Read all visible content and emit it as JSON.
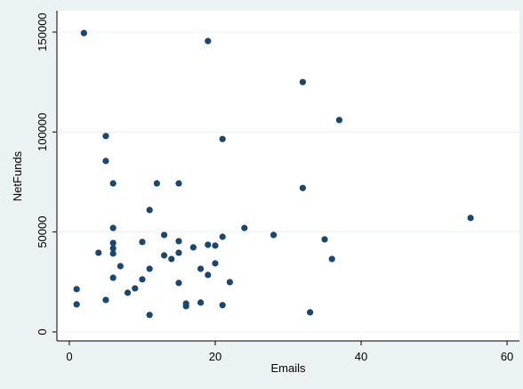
{
  "chart_data": {
    "type": "scatter",
    "x_label": "Emails",
    "y_label": "NetFunds",
    "color": "#1a476f",
    "grid": true,
    "x": [
      2,
      19,
      32,
      37,
      5,
      21,
      5,
      6,
      12,
      15,
      32,
      11,
      55,
      6,
      24,
      13,
      28,
      10,
      15,
      35,
      6,
      19,
      20,
      21,
      6,
      17,
      4,
      6,
      15,
      13,
      14,
      36,
      20,
      7,
      18,
      11,
      6,
      19,
      10,
      15,
      22,
      9,
      8,
      1,
      5,
      18,
      16,
      16,
      21,
      1,
      11,
      33
    ],
    "values": [
      149500,
      145500,
      125000,
      106000,
      98000,
      96500,
      85500,
      74300,
      74300,
      74300,
      72000,
      61000,
      57000,
      52000,
      52000,
      48500,
      48500,
      45000,
      45400,
      46300,
      44500,
      43600,
      43200,
      47600,
      41800,
      42300,
      39600,
      39200,
      39600,
      38300,
      36500,
      36500,
      34300,
      32900,
      31600,
      31600,
      27100,
      28500,
      26300,
      24500,
      24900,
      21800,
      19600,
      21400,
      16000,
      14700,
      14200,
      12900,
      13400,
      13800,
      8500,
      9800
    ],
    "xlim": [
      -1.7,
      61.7
    ],
    "ylim": [
      -4500,
      160700
    ],
    "xticks": [
      0,
      20,
      40,
      60
    ],
    "yticks": [
      0,
      50000,
      100000,
      150000
    ]
  }
}
